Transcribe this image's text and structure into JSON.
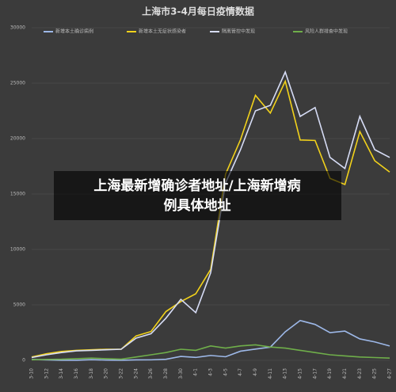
{
  "chart_data": {
    "type": "line",
    "title": "上海市3-4月每日疫情数据",
    "categories": [
      "3-10",
      "3-12",
      "3-14",
      "3-16",
      "3-18",
      "3-20",
      "3-22",
      "3-24",
      "3-26",
      "3-28",
      "3-30",
      "4-1",
      "4-3",
      "4-5",
      "4-7",
      "4-9",
      "4-11",
      "4-13",
      "4-15",
      "4-17",
      "4-19",
      "4-21",
      "4-23",
      "4-25",
      "4-27"
    ],
    "series": [
      {
        "name": "新增本土确诊病例",
        "color": "#9db8e8",
        "values": [
          76,
          41,
          5,
          8,
          57,
          24,
          4,
          38,
          45,
          96,
          355,
          260,
          438,
          322,
          824,
          1015,
          1189,
          2573,
          3590,
          3238,
          2494,
          2634,
          1931,
          1661,
          1292
        ]
      },
      {
        "name": "新增本土无症状感染者",
        "color": "#f2d21b",
        "values": [
          300,
          600,
          800,
          900,
          950,
          1000,
          1000,
          2200,
          2600,
          4400,
          5300,
          6000,
          8200,
          16800,
          19900,
          23900,
          22300,
          25173,
          19872,
          19831,
          16407,
          15861,
          20634,
          18000,
          16983
        ]
      },
      {
        "name": "隔离管控中发现",
        "color": "#d6dcf5",
        "values": [
          250,
          500,
          700,
          850,
          900,
          950,
          1000,
          2000,
          2400,
          3800,
          5500,
          4300,
          7900,
          16000,
          19000,
          22500,
          23000,
          26000,
          22000,
          22800,
          18300,
          17300,
          22000,
          19000,
          18300
        ]
      },
      {
        "name": "风险人群排查中发现",
        "color": "#6fae4a",
        "values": [
          50,
          80,
          100,
          150,
          200,
          150,
          100,
          300,
          500,
          700,
          1000,
          900,
          1300,
          1100,
          1300,
          1400,
          1200,
          1100,
          900,
          700,
          500,
          400,
          300,
          250,
          200
        ]
      }
    ],
    "ylim": [
      0,
      30000
    ],
    "yticks": [
      0,
      5000,
      10000,
      15000,
      20000,
      25000,
      30000
    ],
    "grid": true,
    "banner": [
      "上海最新增确诊者地址/上海新增病",
      "例具体地址"
    ]
  }
}
